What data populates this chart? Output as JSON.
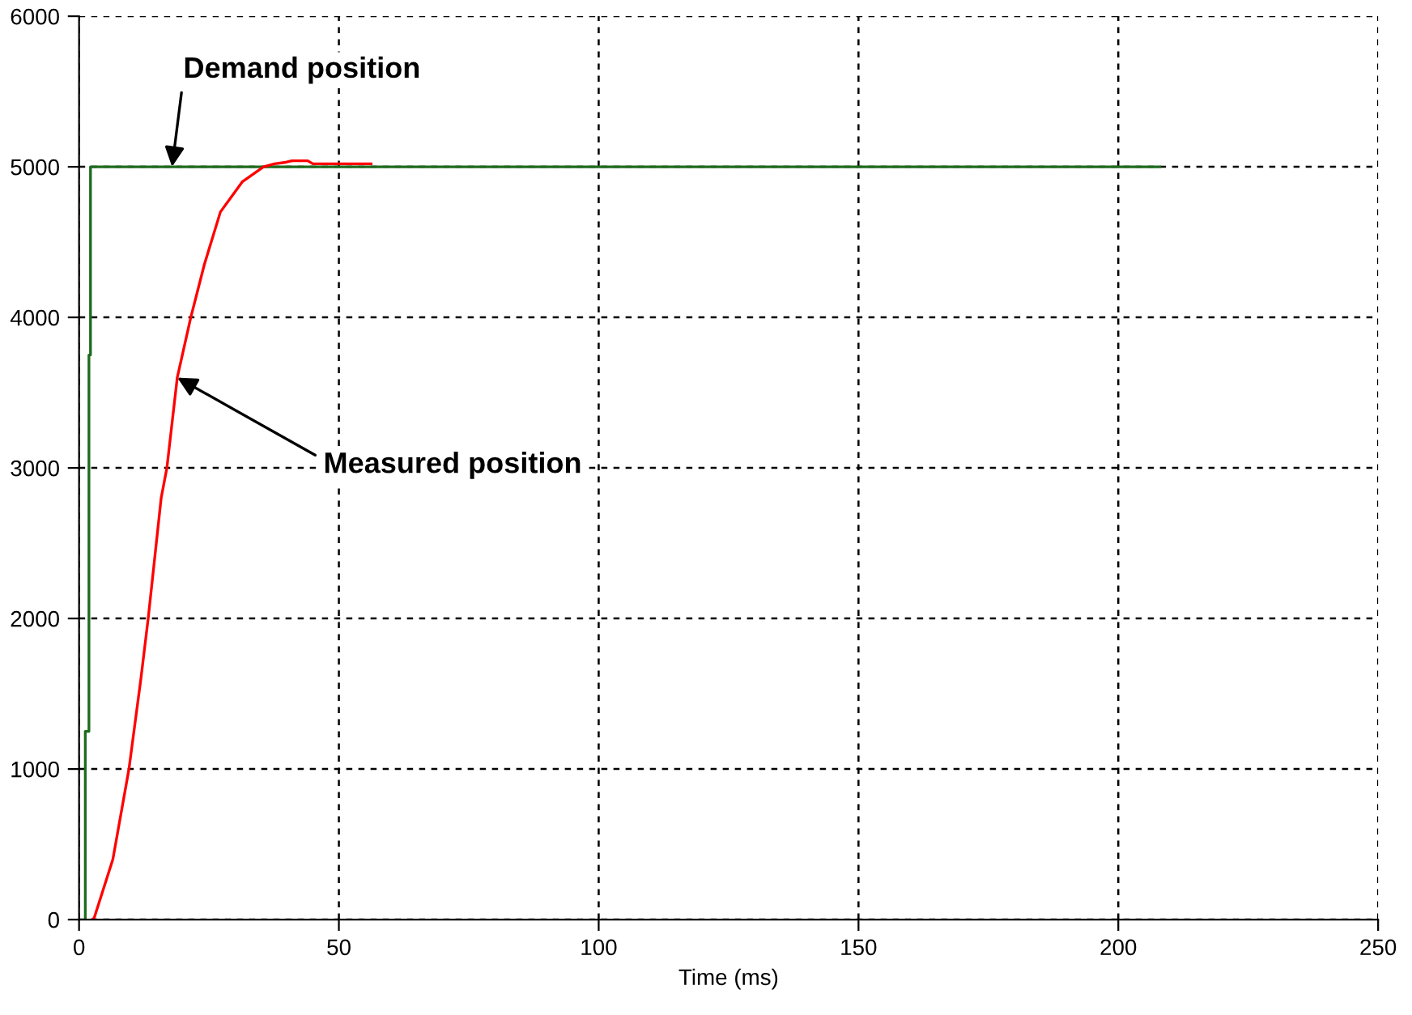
{
  "chart_data": {
    "type": "line",
    "xlabel": "Time (ms)",
    "series": [
      {
        "color": "#1e6b1e",
        "x": [
          1.2,
          1.2,
          1.9,
          1.9,
          2.2,
          2.2,
          208
        ],
        "values": [
          0,
          1250,
          1250,
          3750,
          3750,
          5000,
          5000
        ]
      },
      {
        "color": "#ff0000",
        "x": [
          2.5,
          2.9,
          6.5,
          9.6,
          11.9,
          13.3,
          15.8,
          16.9,
          18.9,
          21.5,
          24.1,
          27.2,
          31.4,
          35.5,
          37.6,
          39.8,
          41,
          44,
          45,
          56.2
        ],
        "values": [
          0,
          10,
          400,
          1000,
          1600,
          2000,
          2800,
          3000,
          3600,
          4000,
          4350,
          4700,
          4900,
          5000,
          5020,
          5030,
          5040,
          5040,
          5020,
          5020
        ]
      }
    ],
    "annotations": [
      {
        "text": "Demand position",
        "x": 17.9,
        "y": 5000
      },
      {
        "text": "Measured position",
        "x": 18.9,
        "y": 3600
      }
    ],
    "xlim": [
      0,
      250
    ],
    "ylim": [
      0,
      6000
    ],
    "xticks": [
      0,
      50,
      100,
      150,
      200,
      250
    ],
    "yticks": [
      0,
      1000,
      2000,
      3000,
      4000,
      5000,
      6000
    ],
    "grid": true,
    "line_style": "solid",
    "marker": "none"
  }
}
